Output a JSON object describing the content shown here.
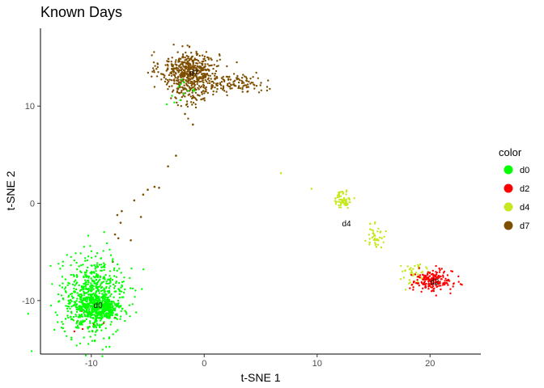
{
  "chart_data": {
    "type": "scatter",
    "title": "Known Days",
    "xlabel": "t-SNE 1",
    "ylabel": "t-SNE 2",
    "xlim": [
      -14.5,
      24.5
    ],
    "ylim": [
      -15.5,
      18
    ],
    "x_ticks": [
      -10,
      0,
      10,
      20
    ],
    "y_ticks": [
      -10,
      0,
      10
    ],
    "grid": false,
    "legend": {
      "title": "color",
      "position": "right"
    },
    "series": [
      {
        "name": "d0",
        "color": "#00ff00",
        "clusters": [
          {
            "cx": -9.8,
            "cy": -9.6,
            "sx": 1.4,
            "sy": 2.0,
            "n": 650
          },
          {
            "cx": -9.5,
            "cy": -10.8,
            "sx": 1.1,
            "sy": 0.7,
            "n": 350
          },
          {
            "cx": -1.5,
            "cy": 11.5,
            "sx": 0.8,
            "sy": 0.8,
            "n": 12
          }
        ]
      },
      {
        "name": "d2",
        "color": "#ff0000",
        "clusters": [
          {
            "cx": 20.2,
            "cy": -8.0,
            "sx": 0.9,
            "sy": 0.55,
            "n": 190
          },
          {
            "cx": -9.3,
            "cy": -11.8,
            "sx": 1.0,
            "sy": 0.6,
            "n": 8
          }
        ]
      },
      {
        "name": "d4",
        "color": "#c5e81e",
        "clusters": [
          {
            "cx": 12.3,
            "cy": 0.4,
            "sx": 0.35,
            "sy": 0.45,
            "n": 70
          },
          {
            "cx": 15.2,
            "cy": -3.5,
            "sx": 0.4,
            "sy": 0.6,
            "n": 45
          },
          {
            "cx": 18.6,
            "cy": -7.2,
            "sx": 0.8,
            "sy": 0.6,
            "n": 45
          }
        ],
        "points": [
          [
            6.8,
            3.1
          ],
          [
            9.5,
            1.5
          ],
          [
            14.7,
            -2.1
          ]
        ]
      },
      {
        "name": "d7",
        "color": "#7f4f00",
        "clusters": [
          {
            "cx": -1.3,
            "cy": 13.8,
            "sx": 1.3,
            "sy": 0.9,
            "n": 420
          },
          {
            "cx": -1.2,
            "cy": 12.0,
            "sx": 1.1,
            "sy": 1.0,
            "n": 180
          },
          {
            "cx": 2.8,
            "cy": 12.3,
            "sx": 1.3,
            "sy": 0.45,
            "n": 110
          }
        ],
        "points": [
          [
            -2.5,
            4.9
          ],
          [
            -3.2,
            3.8
          ],
          [
            -4.4,
            1.7
          ],
          [
            -4.0,
            1.6
          ],
          [
            -5.0,
            1.4
          ],
          [
            -5.4,
            0.9
          ],
          [
            -6.2,
            0.3
          ],
          [
            -7.3,
            -0.8
          ],
          [
            -7.7,
            -1.2
          ],
          [
            -5.6,
            -1.4
          ],
          [
            -7.4,
            -2.0
          ],
          [
            -7.9,
            -3.2
          ],
          [
            -7.6,
            -3.6
          ],
          [
            -6.5,
            -3.8
          ],
          [
            -8.1,
            -6.0
          ],
          [
            -1.0,
            8.1
          ],
          [
            -1.7,
            9.2
          ]
        ]
      }
    ],
    "annotations": [
      {
        "text": "d0",
        "x": -9.4,
        "y": -10.5
      },
      {
        "text": "d2",
        "x": 20.4,
        "y": -8.1
      },
      {
        "text": "d4",
        "x": 12.6,
        "y": -2.1
      },
      {
        "text": "d7",
        "x": -0.9,
        "y": 13.4
      }
    ]
  }
}
